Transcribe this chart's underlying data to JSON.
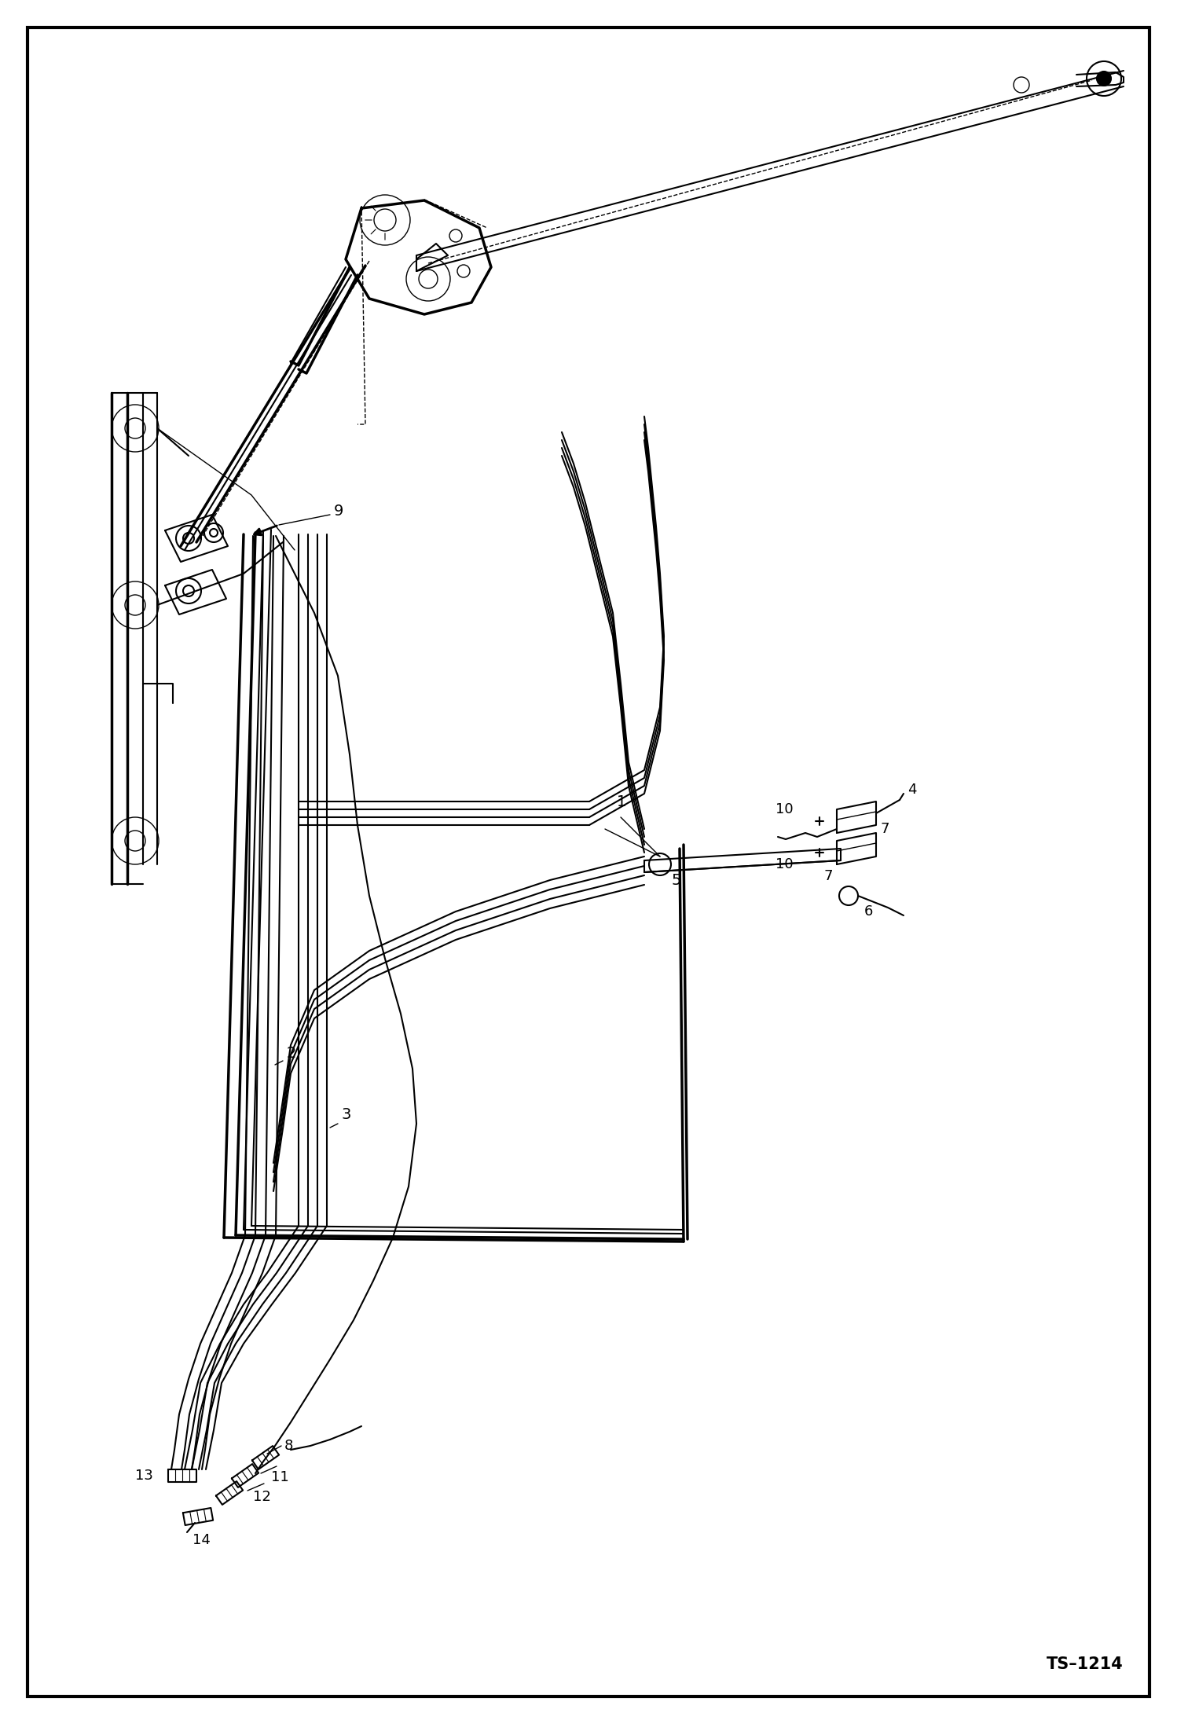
{
  "background": "#ffffff",
  "border_color": "#000000",
  "line_color": "#000000",
  "ts_label": "TS–1214",
  "fig_w": 14.98,
  "fig_h": 21.94,
  "dpi": 100
}
